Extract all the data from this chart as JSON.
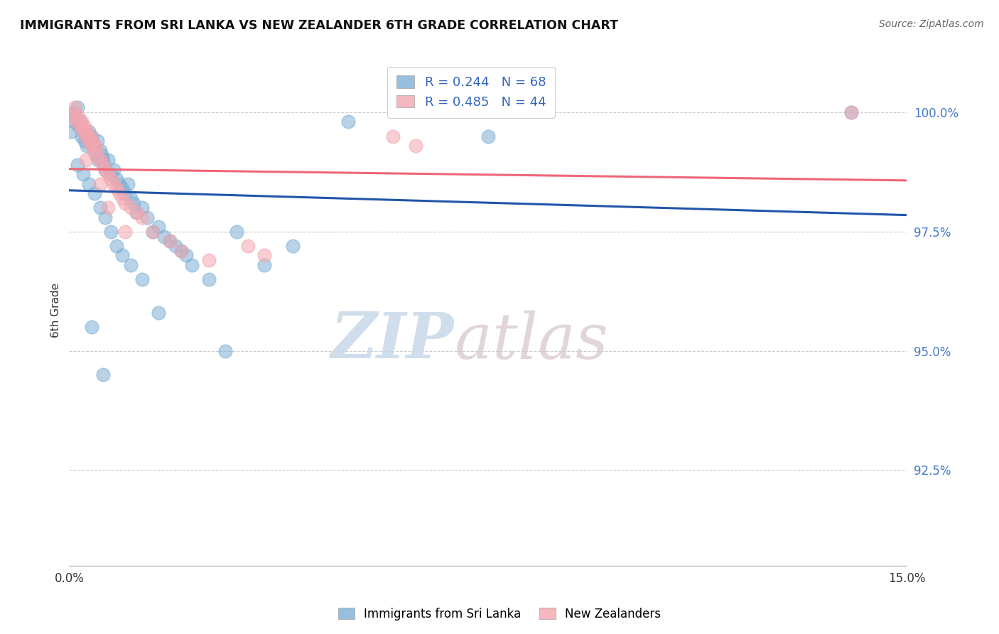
{
  "title": "IMMIGRANTS FROM SRI LANKA VS NEW ZEALANDER 6TH GRADE CORRELATION CHART",
  "source": "Source: ZipAtlas.com",
  "ylabel": "6th Grade",
  "xlim": [
    0.0,
    15.0
  ],
  "ylim": [
    90.5,
    101.2
  ],
  "yticks": [
    92.5,
    95.0,
    97.5,
    100.0
  ],
  "ytick_labels": [
    "92.5%",
    "95.0%",
    "97.5%",
    "100.0%"
  ],
  "watermark_zip": "ZIP",
  "watermark_atlas": "atlas",
  "legend_r1": "R = 0.244",
  "legend_n1": "N = 68",
  "legend_r2": "R = 0.485",
  "legend_n2": "N = 44",
  "blue_color": "#7EB0D5",
  "pink_color": "#F4A7B0",
  "line_blue": "#2255AA",
  "line_pink": "#EE6677",
  "blue_x": [
    0.05,
    0.08,
    0.1,
    0.12,
    0.15,
    0.18,
    0.2,
    0.22,
    0.25,
    0.28,
    0.3,
    0.32,
    0.35,
    0.38,
    0.4,
    0.42,
    0.45,
    0.48,
    0.5,
    0.52,
    0.55,
    0.58,
    0.6,
    0.62,
    0.65,
    0.7,
    0.75,
    0.8,
    0.85,
    0.9,
    0.95,
    1.0,
    1.05,
    1.1,
    1.15,
    1.2,
    1.3,
    1.4,
    1.5,
    1.6,
    1.7,
    1.8,
    1.9,
    2.0,
    2.1,
    2.2,
    2.5,
    3.0,
    3.5,
    4.0,
    0.15,
    0.25,
    0.35,
    0.45,
    0.55,
    0.65,
    0.75,
    0.85,
    0.95,
    1.1,
    1.3,
    1.6,
    2.8,
    14.0,
    7.5,
    5.0,
    0.4,
    0.6
  ],
  "blue_y": [
    99.6,
    99.8,
    100.0,
    99.9,
    100.1,
    99.7,
    99.8,
    99.5,
    99.6,
    99.4,
    99.5,
    99.3,
    99.6,
    99.4,
    99.5,
    99.3,
    99.2,
    99.1,
    99.4,
    99.0,
    99.2,
    99.1,
    99.0,
    98.9,
    98.8,
    99.0,
    98.7,
    98.8,
    98.6,
    98.5,
    98.4,
    98.3,
    98.5,
    98.2,
    98.1,
    97.9,
    98.0,
    97.8,
    97.5,
    97.6,
    97.4,
    97.3,
    97.2,
    97.1,
    97.0,
    96.8,
    96.5,
    97.5,
    96.8,
    97.2,
    98.9,
    98.7,
    98.5,
    98.3,
    98.0,
    97.8,
    97.5,
    97.2,
    97.0,
    96.8,
    96.5,
    95.8,
    95.0,
    100.0,
    99.5,
    99.8,
    95.5,
    94.5
  ],
  "pink_x": [
    0.05,
    0.08,
    0.1,
    0.15,
    0.18,
    0.2,
    0.22,
    0.25,
    0.28,
    0.3,
    0.32,
    0.35,
    0.38,
    0.4,
    0.42,
    0.45,
    0.48,
    0.5,
    0.55,
    0.6,
    0.65,
    0.7,
    0.75,
    0.8,
    0.85,
    0.9,
    0.95,
    1.0,
    1.1,
    1.2,
    1.3,
    1.5,
    1.8,
    2.0,
    2.5,
    3.2,
    3.5,
    5.8,
    6.2,
    14.0,
    0.3,
    0.55,
    0.7,
    1.0
  ],
  "pink_y": [
    99.9,
    100.0,
    100.1,
    99.8,
    99.9,
    99.7,
    99.8,
    99.6,
    99.7,
    99.5,
    99.6,
    99.4,
    99.5,
    99.3,
    99.4,
    99.2,
    99.3,
    99.1,
    99.0,
    98.9,
    98.8,
    98.7,
    98.6,
    98.5,
    98.4,
    98.3,
    98.2,
    98.1,
    98.0,
    97.9,
    97.8,
    97.5,
    97.3,
    97.1,
    96.9,
    97.2,
    97.0,
    99.5,
    99.3,
    100.0,
    99.0,
    98.5,
    98.0,
    97.5
  ]
}
